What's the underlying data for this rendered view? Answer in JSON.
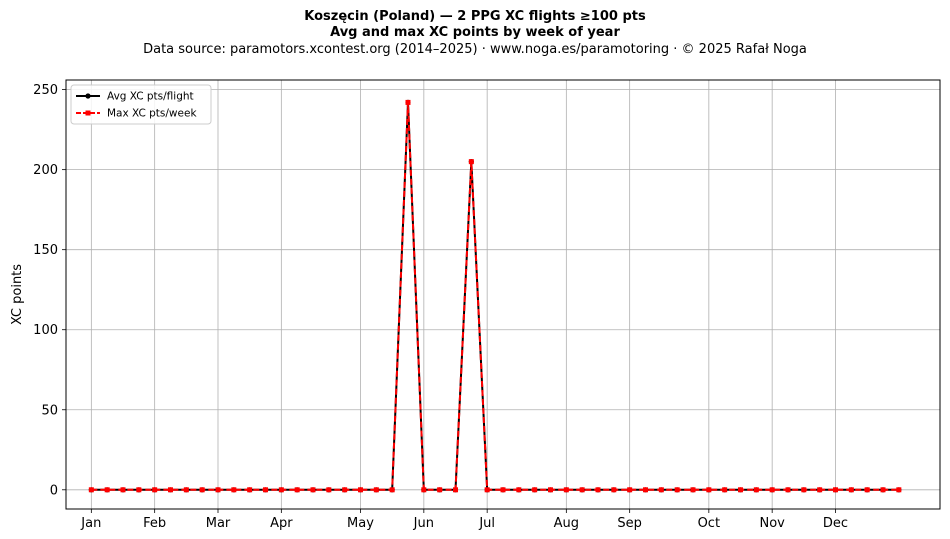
{
  "header": {
    "title": "Koszęcin (Poland)  —  2 PPG XC flights ≥100 pts",
    "subtitle": "Avg and max XC points by week of year",
    "source": "Data source: paramotors.xcontest.org (2014–2025)  ·  www.noga.es/paramotoring  ·  © 2025 Rafał Noga"
  },
  "chart_data": {
    "type": "line",
    "title": "Koszęcin (Poland)  —  2 PPG XC flights ≥100 pts",
    "subtitle": "Avg and max XC points by week of year",
    "xlabel": "",
    "ylabel": "XC points",
    "x": [
      1,
      2,
      3,
      4,
      5,
      6,
      7,
      8,
      9,
      10,
      11,
      12,
      13,
      14,
      15,
      16,
      17,
      18,
      19,
      20,
      21,
      22,
      23,
      24,
      25,
      26,
      27,
      28,
      29,
      30,
      31,
      32,
      33,
      34,
      35,
      36,
      37,
      38,
      39,
      40,
      41,
      42,
      43,
      44,
      45,
      46,
      47,
      48,
      49,
      50,
      51,
      52
    ],
    "month_ticks": [
      {
        "label": "Jan",
        "week": 1
      },
      {
        "label": "Feb",
        "week": 5
      },
      {
        "label": "Mar",
        "week": 9
      },
      {
        "label": "Apr",
        "week": 13
      },
      {
        "label": "May",
        "week": 18
      },
      {
        "label": "Jun",
        "week": 22
      },
      {
        "label": "Jul",
        "week": 26
      },
      {
        "label": "Aug",
        "week": 31
      },
      {
        "label": "Sep",
        "week": 35
      },
      {
        "label": "Oct",
        "week": 40
      },
      {
        "label": "Nov",
        "week": 44
      },
      {
        "label": "Dec",
        "week": 48
      }
    ],
    "yticks": [
      0,
      50,
      100,
      150,
      200,
      250
    ],
    "ylim": [
      -12,
      256
    ],
    "xlim": [
      -0.6,
      54.6
    ],
    "grid": true,
    "legend_position": "upper-left",
    "series": [
      {
        "name": "Avg XC pts/flight",
        "color": "#000000",
        "style": "solid",
        "marker": "circle",
        "values": [
          0,
          0,
          0,
          0,
          0,
          0,
          0,
          0,
          0,
          0,
          0,
          0,
          0,
          0,
          0,
          0,
          0,
          0,
          0,
          0,
          242,
          0,
          0,
          0,
          205,
          0,
          0,
          0,
          0,
          0,
          0,
          0,
          0,
          0,
          0,
          0,
          0,
          0,
          0,
          0,
          0,
          0,
          0,
          0,
          0,
          0,
          0,
          0,
          0,
          0,
          0,
          0
        ]
      },
      {
        "name": "Max XC pts/week",
        "color": "#ff0000",
        "style": "dashed",
        "marker": "square",
        "values": [
          0,
          0,
          0,
          0,
          0,
          0,
          0,
          0,
          0,
          0,
          0,
          0,
          0,
          0,
          0,
          0,
          0,
          0,
          0,
          0,
          242,
          0,
          0,
          0,
          205,
          0,
          0,
          0,
          0,
          0,
          0,
          0,
          0,
          0,
          0,
          0,
          0,
          0,
          0,
          0,
          0,
          0,
          0,
          0,
          0,
          0,
          0,
          0,
          0,
          0,
          0,
          0
        ]
      }
    ]
  }
}
